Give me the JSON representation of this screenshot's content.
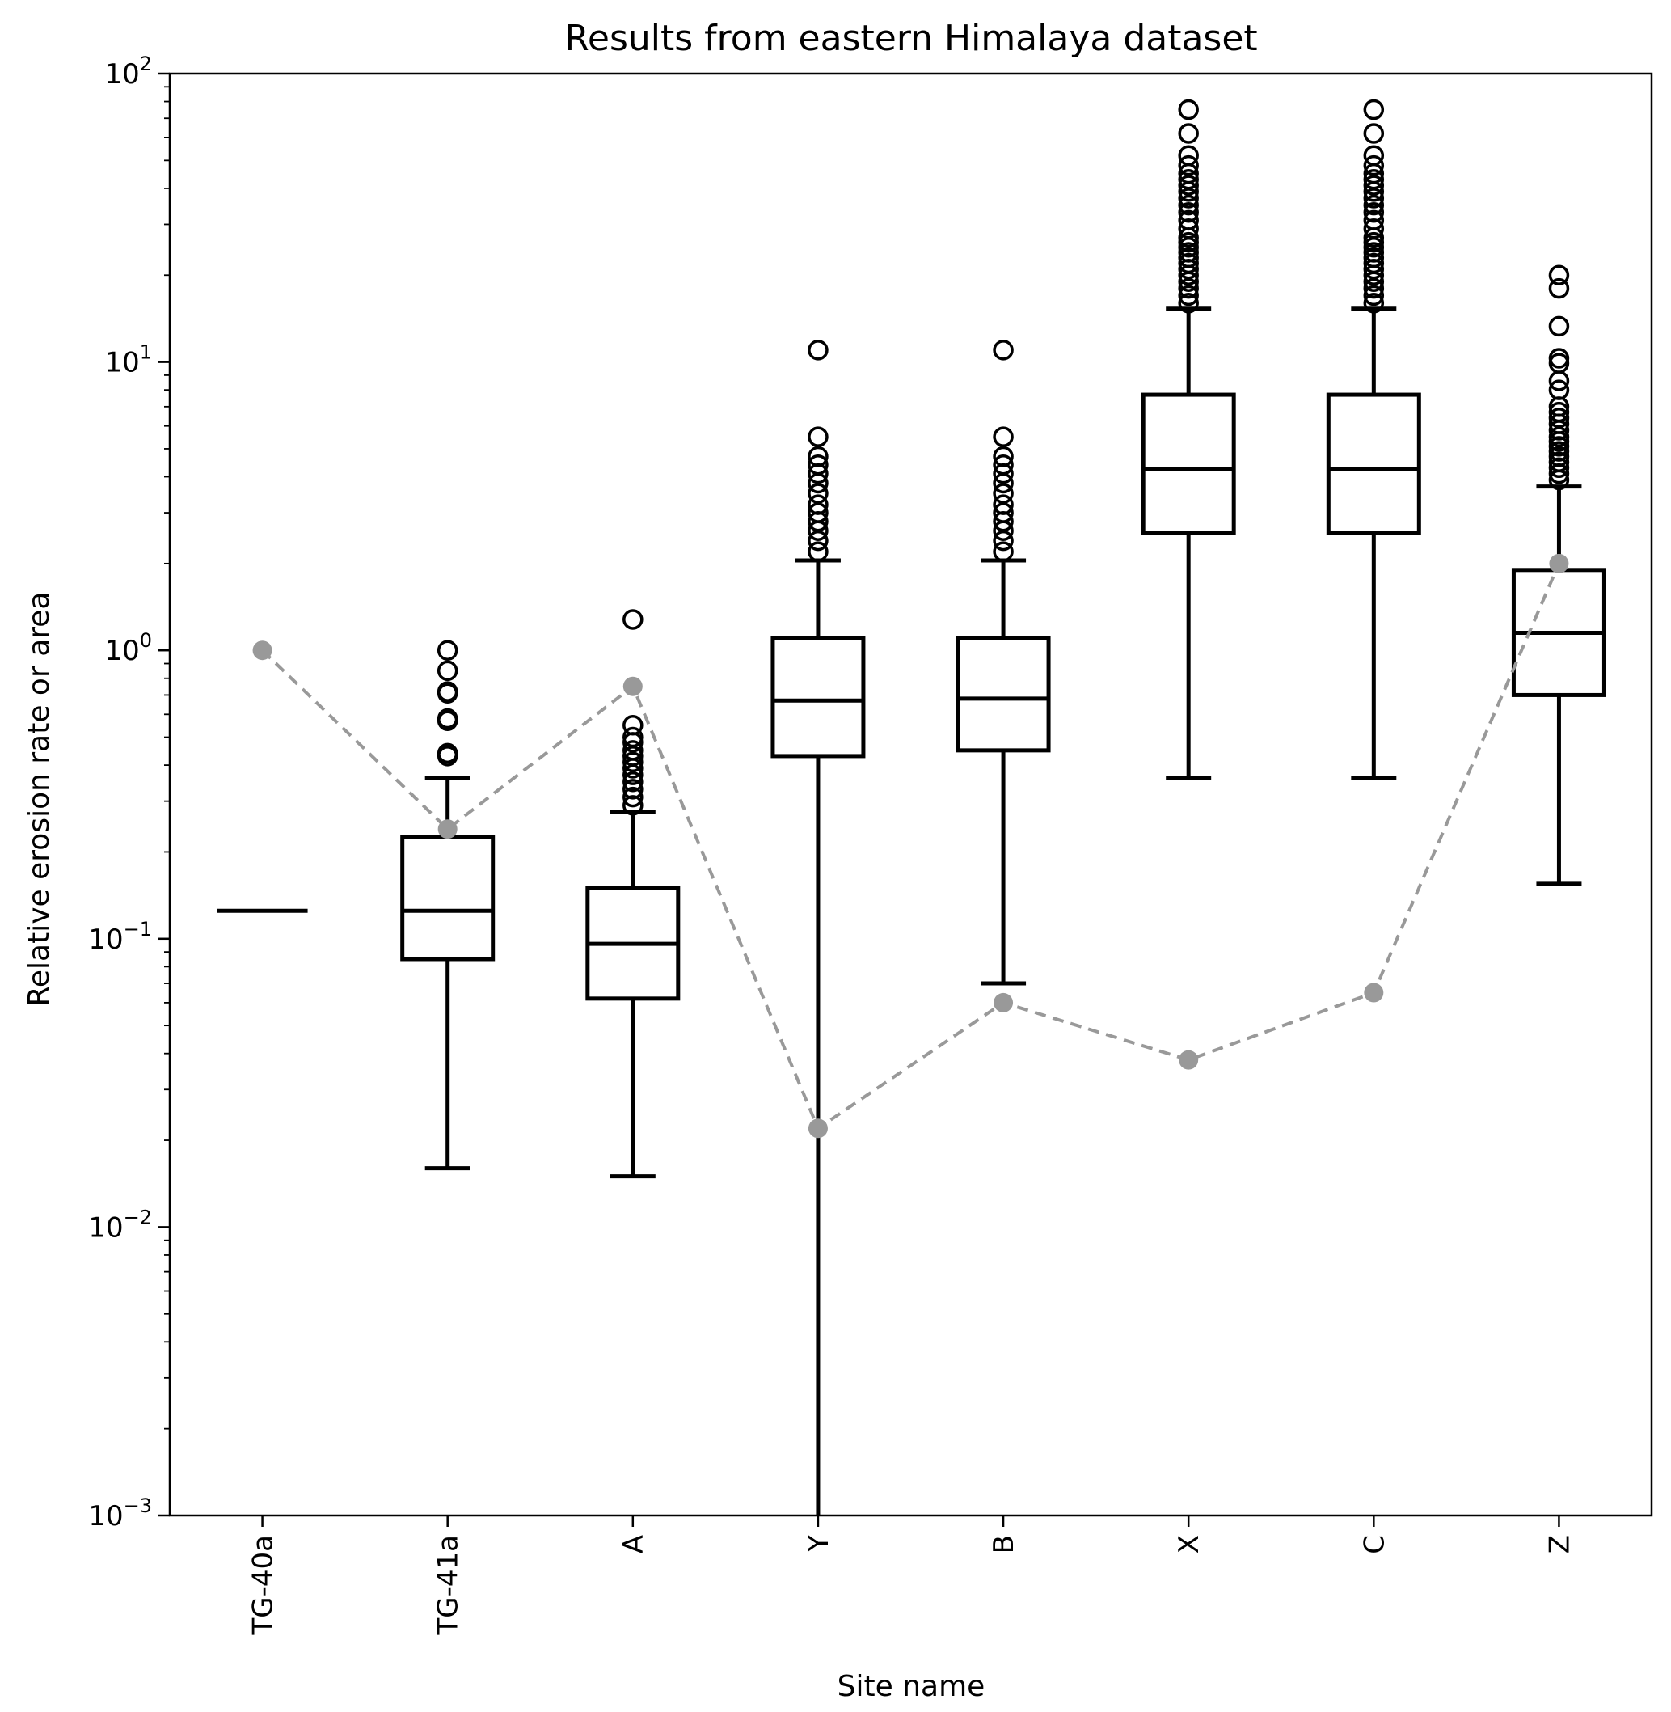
{
  "chart_data": {
    "type": "box",
    "title": "Results from eastern Himalaya dataset",
    "xlabel": "Site name",
    "ylabel": "Relative erosion rate or area",
    "yscale": "log",
    "ylim": [
      0.001,
      100
    ],
    "y_ticks": [
      {
        "base": "10",
        "exp": "−3",
        "value": 0.001
      },
      {
        "base": "10",
        "exp": "−2",
        "value": 0.01
      },
      {
        "base": "10",
        "exp": "−1",
        "value": 0.1
      },
      {
        "base": "10",
        "exp": "0",
        "value": 1
      },
      {
        "base": "10",
        "exp": "1",
        "value": 10
      },
      {
        "base": "10",
        "exp": "2",
        "value": 100
      }
    ],
    "categories": [
      "TG-40a",
      "TG-41a",
      "A",
      "Y",
      "B",
      "X",
      "C",
      "Z"
    ],
    "boxes": [
      {
        "whislo": 0.125,
        "q1": 0.125,
        "med": 0.125,
        "q3": 0.125,
        "whishi": 0.125,
        "fliers": []
      },
      {
        "whislo": 0.016,
        "q1": 0.085,
        "med": 0.125,
        "q3": 0.225,
        "whishi": 0.36,
        "fliers": [
          0.43,
          0.44,
          0.57,
          0.58,
          0.71,
          0.72,
          0.85,
          1.0
        ]
      },
      {
        "whislo": 0.015,
        "q1": 0.062,
        "med": 0.096,
        "q3": 0.15,
        "whishi": 0.275,
        "fliers": [
          0.29,
          0.31,
          0.33,
          0.35,
          0.37,
          0.39,
          0.41,
          0.43,
          0.45,
          0.48,
          0.5,
          0.55,
          1.28
        ]
      },
      {
        "whislo": 0.001,
        "q1": 0.43,
        "med": 0.67,
        "q3": 1.1,
        "whishi": 2.05,
        "fliers": [
          2.2,
          2.4,
          2.6,
          2.8,
          3.0,
          3.2,
          3.5,
          3.8,
          4.1,
          4.4,
          4.7,
          5.5,
          11.0
        ]
      },
      {
        "whislo": 0.07,
        "q1": 0.45,
        "med": 0.68,
        "q3": 1.1,
        "whishi": 2.05,
        "fliers": [
          2.2,
          2.4,
          2.6,
          2.8,
          3.0,
          3.2,
          3.5,
          3.8,
          4.1,
          4.4,
          4.7,
          5.5,
          11.0
        ]
      },
      {
        "whislo": 0.36,
        "q1": 2.55,
        "med": 4.25,
        "q3": 7.7,
        "whishi": 15.3,
        "fliers": [
          16,
          17,
          18,
          19,
          20,
          21,
          22,
          23,
          24,
          25,
          26,
          27,
          29,
          31,
          33,
          35,
          37,
          39,
          41,
          43,
          45,
          48,
          52,
          62,
          75
        ]
      },
      {
        "whislo": 0.36,
        "q1": 2.55,
        "med": 4.25,
        "q3": 7.7,
        "whishi": 15.3,
        "fliers": [
          16,
          17,
          18,
          19,
          20,
          21,
          22,
          23,
          24,
          25,
          26,
          27,
          29,
          31,
          33,
          35,
          37,
          39,
          41,
          43,
          45,
          48,
          52,
          62,
          75
        ]
      },
      {
        "whislo": 0.155,
        "q1": 0.7,
        "med": 1.15,
        "q3": 1.9,
        "whishi": 3.7,
        "fliers": [
          3.9,
          4.1,
          4.3,
          4.5,
          4.7,
          4.9,
          5.1,
          5.3,
          5.5,
          5.8,
          6.1,
          6.4,
          6.7,
          7.0,
          8.0,
          8.6,
          9.9,
          10.3,
          13.3,
          18.0,
          20.0
        ]
      }
    ],
    "series": [
      {
        "style": "dashed",
        "color": "#999999",
        "values": [
          1.0,
          0.24,
          0.75,
          0.022,
          0.06,
          0.038,
          0.065,
          2.0
        ]
      }
    ],
    "grid": false,
    "legend": "none",
    "colors": {
      "box": "#000000",
      "overlay_line": "#999999",
      "background": "#ffffff"
    }
  }
}
